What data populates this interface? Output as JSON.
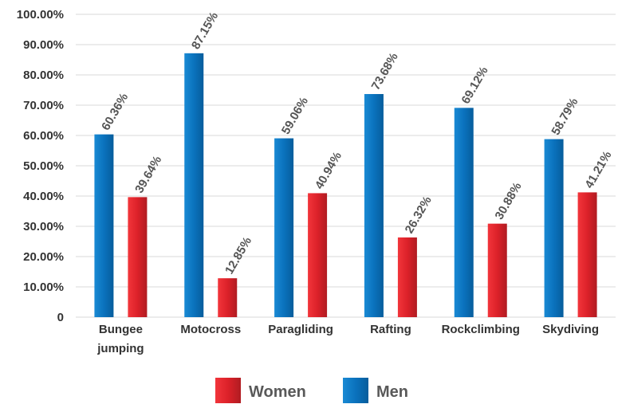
{
  "chart_data": {
    "type": "bar",
    "categories": [
      [
        "Bungee",
        "jumping"
      ],
      [
        "Motocross"
      ],
      [
        "Paragliding"
      ],
      [
        "Rafting"
      ],
      [
        "Rockclimbing"
      ],
      [
        "Skydiving"
      ]
    ],
    "series": [
      {
        "name": "Men",
        "color": "#0a6fb8",
        "values": [
          60.36,
          87.15,
          59.06,
          73.68,
          69.12,
          58.79
        ],
        "labels": [
          "60.36%",
          "87.15%",
          "59.06%",
          "73.68%",
          "69.12%",
          "58.79%"
        ]
      },
      {
        "name": "Women",
        "color": "#e3242b",
        "values": [
          39.64,
          12.85,
          40.94,
          26.32,
          30.88,
          41.21
        ],
        "labels": [
          "39.64%",
          "12.85%",
          "40.94%",
          "26.32%",
          "30.88%",
          "41.21%"
        ]
      }
    ],
    "ylim": [
      0,
      100
    ],
    "yticks": [
      "0",
      "10.00%",
      "20.00%",
      "30.00%",
      "40.00%",
      "50.00%",
      "60.00%",
      "70.00%",
      "80.00%",
      "90.00%",
      "100.00%"
    ],
    "legend": {
      "placement": "bottom",
      "items": [
        {
          "name": "Women",
          "color": "#e3242b"
        },
        {
          "name": "Men",
          "color": "#0a6fb8"
        }
      ]
    },
    "grid": true
  }
}
